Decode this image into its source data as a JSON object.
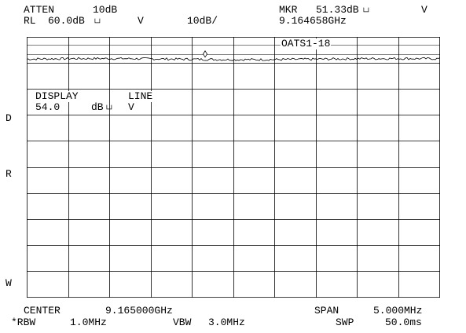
{
  "header": {
    "atten_label": "ATTEN",
    "atten_value": "10dB",
    "rl_label": "RL",
    "rl_value": "60.0dB",
    "rl_unit": "V",
    "scale": "10dB/",
    "mkr_label": "MKR",
    "mkr_value": "51.33dB",
    "mkr_unit": "V",
    "mkr_freq": "9.164658GHz",
    "trace_title": "OATS1-18"
  },
  "display_line": {
    "label_1": "DISPLAY",
    "label_2": "LINE",
    "value": "54.0",
    "unit": "dB",
    "unit_suffix": "V"
  },
  "side_labels": {
    "d": "D",
    "r": "R",
    "w": "W"
  },
  "footer": {
    "center_label": "CENTER",
    "center_value": "9.165000GHz",
    "span_label": "SPAN",
    "span_value": "5.000MHz",
    "rbw_label": "*RBW",
    "rbw_value": "1.0MHz",
    "vbw_label": "VBW",
    "vbw_value": "3.0MHz",
    "swp_label": "SWP",
    "swp_value": "50.0ms"
  },
  "chart_data": {
    "type": "line",
    "xlabel": "",
    "ylabel": "",
    "x_range_mhz": [
      9162.5,
      9167.5
    ],
    "y_reference_dbuv": 60.0,
    "y_scale_db_per_div": 10,
    "y_divisions": 10,
    "display_line_dbuv": 54.0,
    "marker": {
      "x_ghz": 9.164658,
      "y_dbuv": 51.33
    },
    "trace_level_dbuv": 51.5,
    "grid": true,
    "colors": {
      "trace": "#000000",
      "grid": "#000000"
    }
  }
}
